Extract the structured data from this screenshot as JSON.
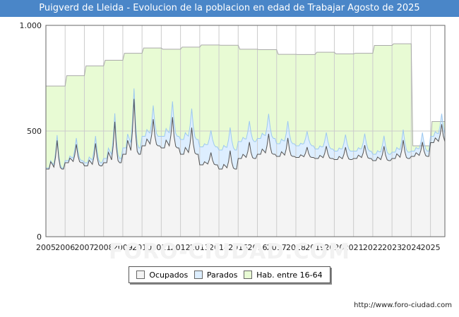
{
  "header": {
    "title": "Puigverd de Lleida - Evolucion de la poblacion en edad de Trabajar Agosto de 2025"
  },
  "footer": {
    "source": "http://www.foro-ciudad.com"
  },
  "watermark": "FORO-CIUDAD.COM",
  "chart_data": {
    "type": "area",
    "title": "Puigverd de Lleida - Evolucion de la poblacion en edad de Trabajar Agosto de 2025",
    "xlabel": "",
    "ylabel": "",
    "x_ticks": [
      "2005",
      "2006",
      "2007",
      "2008",
      "2009",
      "2010",
      "2011",
      "2012",
      "2013",
      "2014",
      "2015",
      "2016",
      "2017",
      "2018",
      "2019",
      "2020",
      "2021",
      "2022",
      "2023",
      "2024",
      "2025"
    ],
    "y_ticks": [
      {
        "value": 0,
        "label": "0"
      },
      {
        "value": 500,
        "label": "500"
      },
      {
        "value": 1000,
        "label": "1.000"
      }
    ],
    "xlim": [
      2005,
      2025.75
    ],
    "ylim": [
      0,
      1000
    ],
    "legend_position": "bottom",
    "colors": {
      "ocupados_fill": "#f4f4f4",
      "parados_fill": "#ddeeff",
      "habitantes_fill": "#e8fbd4",
      "habitantes_line": "#aaaaaa",
      "ocupados_line": "#555555",
      "parados_line": "#9ec9f0",
      "grid": "#cccccc"
    },
    "habitantes": {
      "name": "Hab. entre 16-64",
      "years": [
        2005,
        2006,
        2007,
        2008,
        2009,
        2010,
        2011,
        2012,
        2013,
        2014,
        2015,
        2016,
        2017,
        2018,
        2019,
        2020,
        2021,
        2022,
        2023,
        2024,
        2025
      ],
      "values": [
        713,
        762,
        808,
        835,
        868,
        893,
        887,
        897,
        907,
        906,
        887,
        885,
        863,
        862,
        873,
        865,
        868,
        905,
        913,
        430,
        545
      ]
    },
    "ocupados": {
      "name": "Ocupados",
      "years": [
        2005,
        2006,
        2007,
        2008,
        2009,
        2010,
        2011,
        2012,
        2013,
        2014,
        2015,
        2016,
        2017,
        2018,
        2019,
        2020,
        2021,
        2022,
        2023,
        2024,
        2025
      ],
      "values": [
        320,
        350,
        335,
        350,
        390,
        430,
        420,
        390,
        340,
        320,
        370,
        390,
        380,
        375,
        370,
        365,
        370,
        360,
        370,
        380,
        445
      ],
      "seasonal_peak": [
        140,
        90,
        110,
        200,
        270,
        130,
        150,
        130,
        60,
        90,
        80,
        100,
        90,
        50,
        60,
        60,
        65,
        70,
        90,
        70,
        90
      ]
    },
    "parados": {
      "name": "Parados",
      "offset_values": [
        5,
        10,
        15,
        20,
        30,
        45,
        55,
        70,
        85,
        90,
        80,
        75,
        60,
        55,
        45,
        40,
        35,
        30,
        30,
        25,
        30
      ]
    }
  }
}
